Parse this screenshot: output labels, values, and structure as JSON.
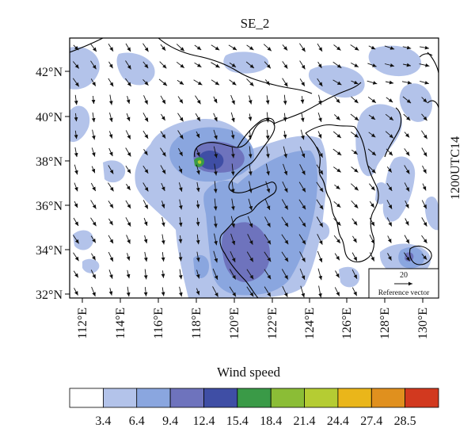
{
  "map": {
    "title": "SE_2",
    "time_label": "1200UTC14",
    "lat_ticks": [
      "42°N",
      "40°N",
      "38°N",
      "36°N",
      "34°N",
      "32°N"
    ],
    "lon_ticks": [
      "112°E",
      "114°E",
      "116°E",
      "118°E",
      "120°E",
      "122°E",
      "124°E",
      "126°E",
      "128°E",
      "130°E"
    ],
    "reference_vector": {
      "value": "20",
      "label": "Reference vector"
    }
  },
  "colorbar": {
    "title": "Wind speed",
    "levels": [
      "3.4",
      "6.4",
      "9.4",
      "12.4",
      "15.4",
      "18.4",
      "21.4",
      "24.4",
      "27.4",
      "28.5"
    ],
    "colors": [
      "#ffffff",
      "#b3c3ea",
      "#8aa6df",
      "#6e73bd",
      "#3f4ea5",
      "#3a9a47",
      "#8bbd36",
      "#b5cc33",
      "#eab61a",
      "#e0901e",
      "#d2391f"
    ]
  },
  "style": {
    "light_blue": "#b3c3ea",
    "mid_blue": "#8aa6df",
    "purple": "#6e73bd",
    "dark_blue": "#3f4ea5",
    "green": "#3a9a47",
    "coast_color": "#000000",
    "arrow_color": "#111111"
  }
}
